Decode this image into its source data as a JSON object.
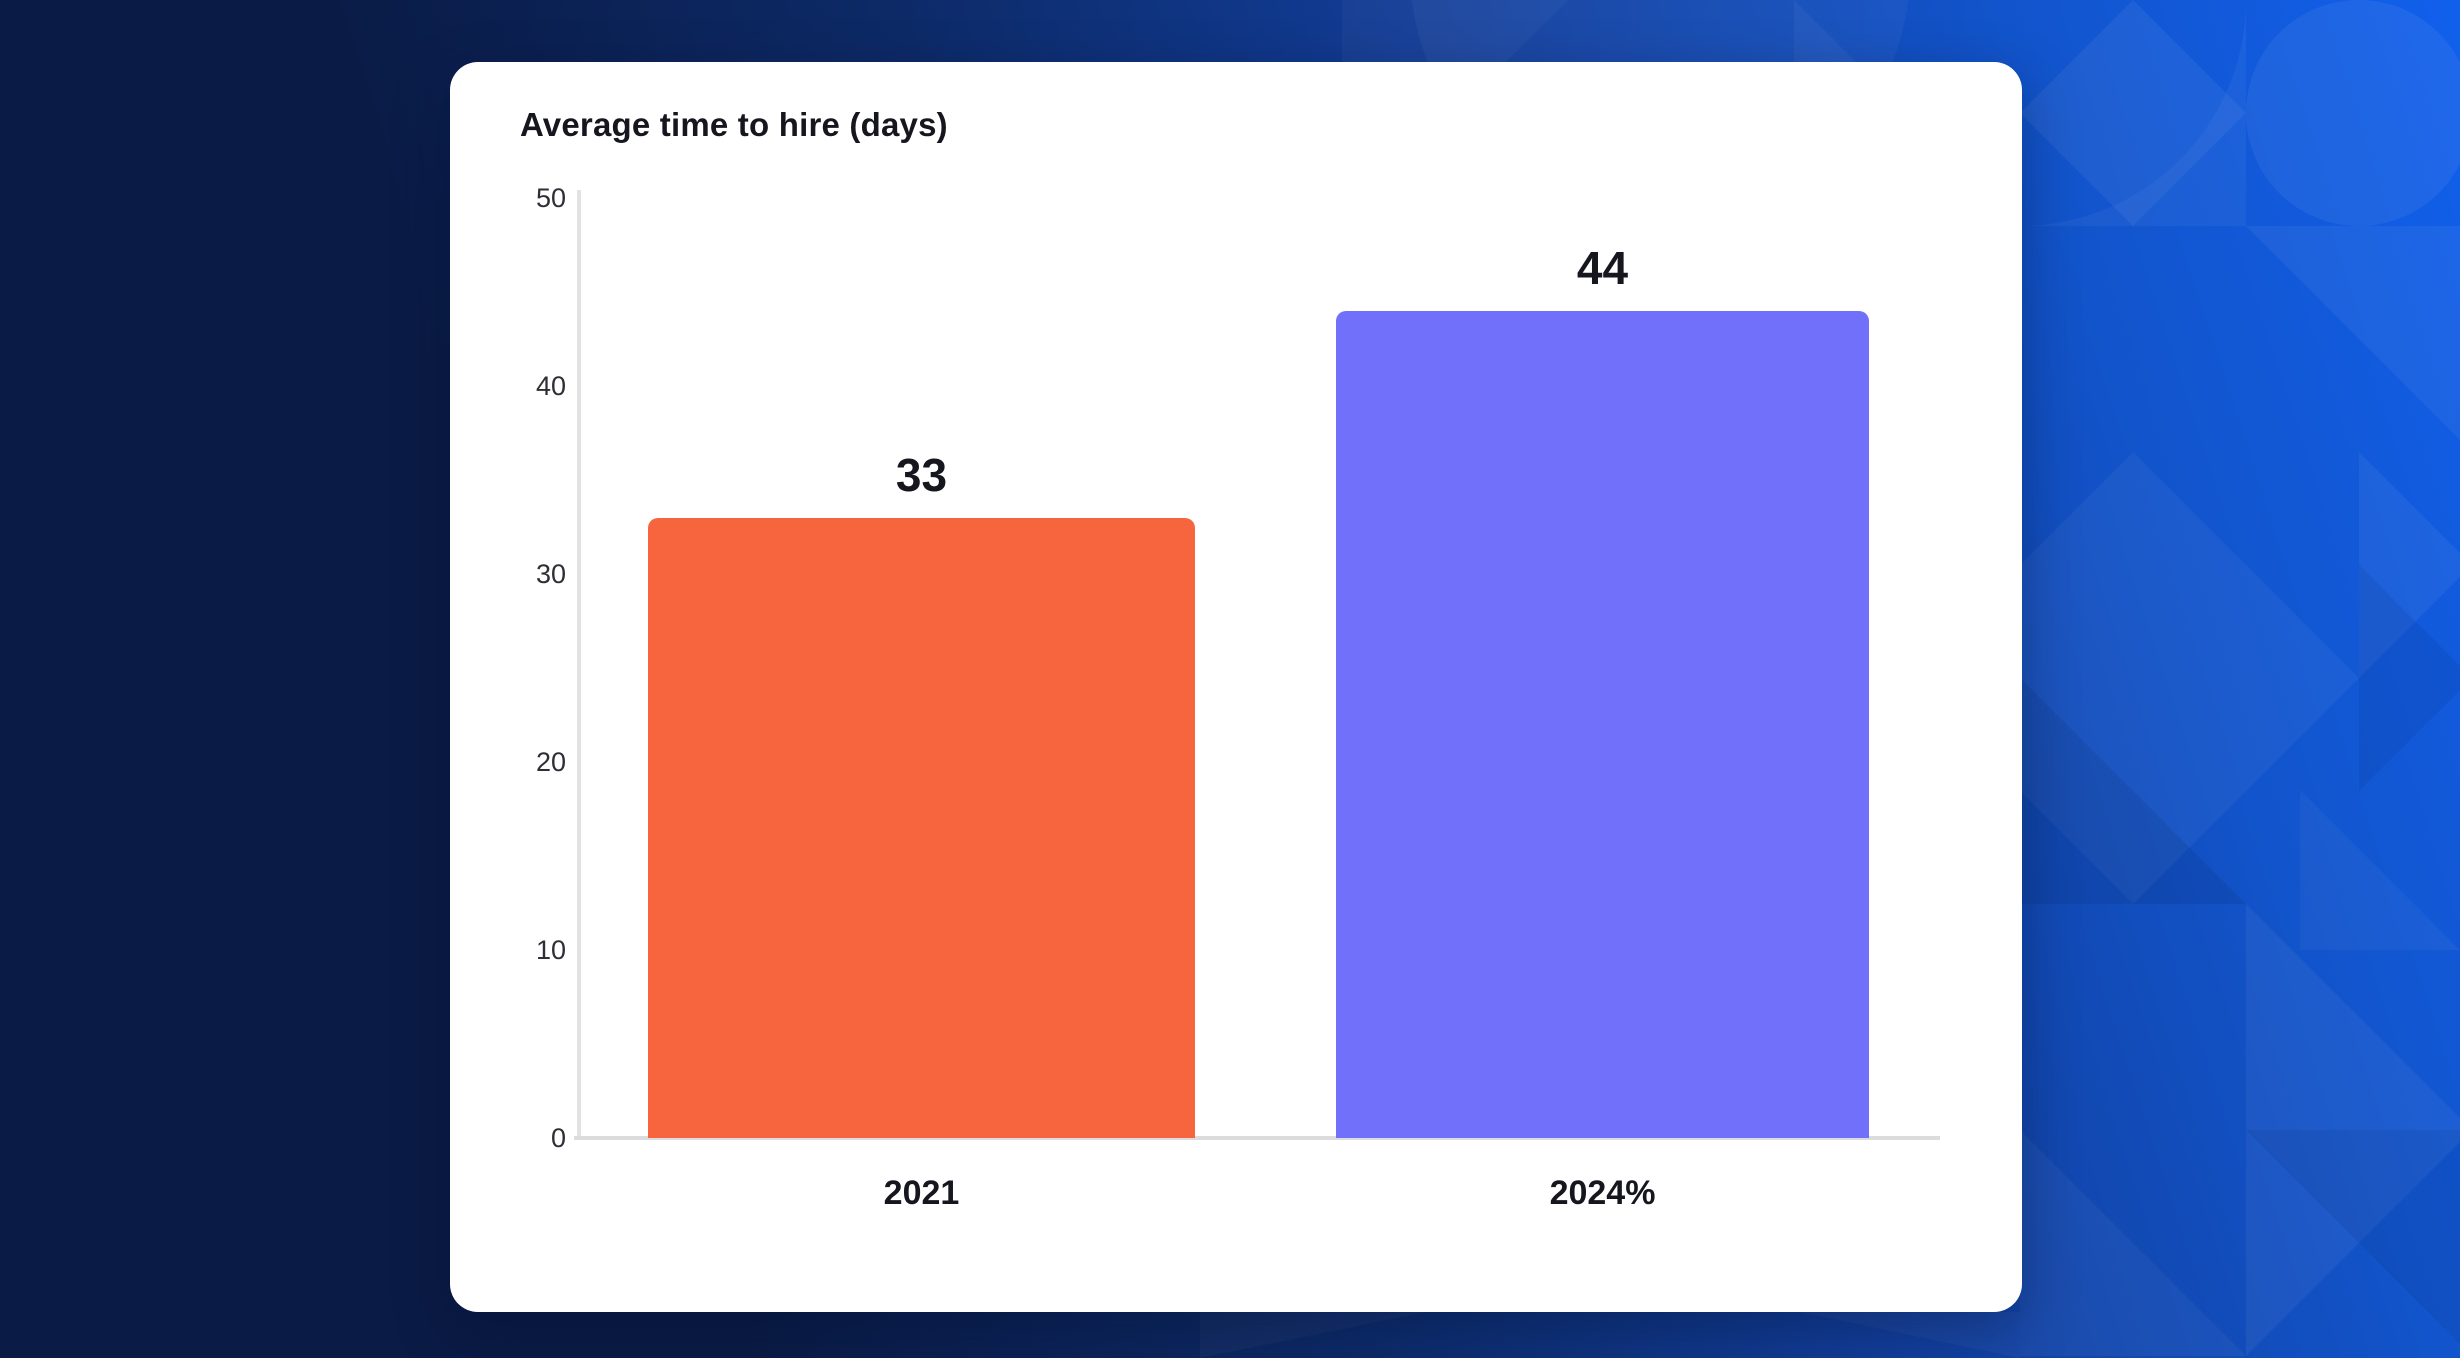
{
  "chart_data": {
    "type": "bar",
    "title": "Average time to hire (days)",
    "categories": [
      "2021",
      "2024%"
    ],
    "values": [
      33,
      44
    ],
    "value_labels": [
      "33",
      "44"
    ],
    "series_colors": [
      "#f7653f",
      "#7170fa"
    ],
    "xlabel": "",
    "ylabel": "",
    "ylim": [
      0,
      50
    ],
    "yticks": [
      0,
      10,
      20,
      30,
      40,
      50
    ],
    "grid": false,
    "legend": false
  },
  "colors": {
    "background_navy": "#0a1b45",
    "background_blue": "#1160ec",
    "card_background": "#ffffff",
    "axis_line": "#dedee1",
    "text_dark": "#16161e",
    "bar_2021_orange": "#f7653f",
    "bar_2024_purple": "#7170fa"
  }
}
